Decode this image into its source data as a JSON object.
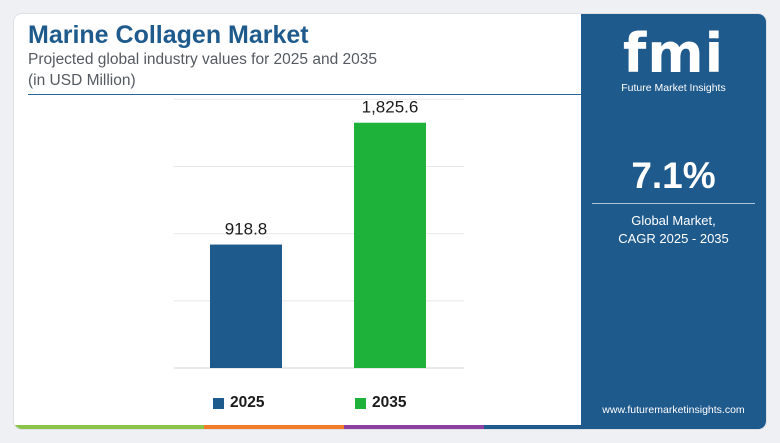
{
  "header": {
    "title": "Marine Collagen Market",
    "subtitle": "Projected global industry values for 2025 and 2035",
    "unit_note": "(in USD Million)"
  },
  "chart_data": {
    "type": "bar",
    "title": "Marine Collagen Market",
    "categories": [
      "2025",
      "2035"
    ],
    "values": [
      918.8,
      1825.6
    ],
    "value_labels": [
      "918.8",
      "1,825.6"
    ],
    "colors": [
      "#1f5a8c",
      "#1fb23a"
    ],
    "ylim": [
      0,
      2300
    ],
    "grid": true,
    "legend": "bottom",
    "xlabel": "",
    "ylabel": ""
  },
  "legend": {
    "items": [
      {
        "label": "2025",
        "color": "#1f5a8c"
      },
      {
        "label": "2035",
        "color": "#1fb23a"
      }
    ]
  },
  "sidebar": {
    "logo_text": "fmi",
    "logo_subtitle": "Future Market Insights",
    "cagr_value": "7.1%",
    "cagr_label_line1": "Global Market,",
    "cagr_label_line2": "CAGR 2025 - 2035",
    "website": "www.futuremarketinsights.com",
    "background_color": "#1f5a8c"
  },
  "bottom_bar_colors": [
    "#8bc34a",
    "#f07c28",
    "#8d3fa0",
    "#1f5a8c"
  ]
}
